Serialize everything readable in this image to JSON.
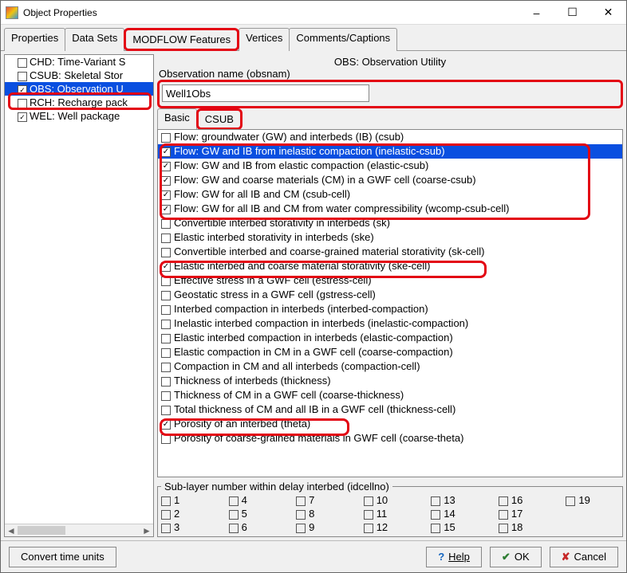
{
  "window": {
    "title": "Object Properties"
  },
  "tabs": [
    "Properties",
    "Data Sets",
    "MODFLOW Features",
    "Vertices",
    "Comments/Captions"
  ],
  "active_tab": "MODFLOW Features",
  "sidebar": {
    "items": [
      {
        "label": "CHD: Time-Variant S",
        "checked": false
      },
      {
        "label": "CSUB: Skeletal Stor",
        "checked": false
      },
      {
        "label": "OBS: Observation U",
        "checked": true,
        "highlight": true
      },
      {
        "label": "RCH: Recharge pack",
        "checked": false
      },
      {
        "label": "WEL: Well package",
        "checked": true
      }
    ]
  },
  "heading": "OBS: Observation Utility",
  "obsname": {
    "label": "Observation name (obsnam)",
    "value": "Well1Obs"
  },
  "subtabs": [
    "Basic",
    "CSUB"
  ],
  "listItems": [
    {
      "label": "Flow: groundwater (GW) and interbeds (IB) (csub)",
      "checked": false
    },
    {
      "label": "Flow: GW and IB from inelastic compaction (inelastic-csub)",
      "checked": true,
      "selected": true
    },
    {
      "label": "Flow: GW and IB from elastic compaction (elastic-csub)",
      "checked": true
    },
    {
      "label": "Flow: GW and coarse materials (CM) in a GWF cell (coarse-csub)",
      "checked": true
    },
    {
      "label": "Flow: GW for all IB and CM (csub-cell)",
      "checked": true
    },
    {
      "label": "Flow: GW for all IB and CM from water compressibility (wcomp-csub-cell)",
      "checked": true
    },
    {
      "label": "Convertible interbed storativity in interbeds (sk)",
      "checked": false
    },
    {
      "label": "Elastic interbed storativity in interbeds (ske)",
      "checked": false
    },
    {
      "label": "Convertible interbed and coarse-grained material storativity (sk-cell)",
      "checked": false
    },
    {
      "label": "Elastic interbed and coarse material storativity (ske-cell)",
      "checked": true
    },
    {
      "label": "Effective stress in a GWF cell (estress-cell)",
      "checked": false
    },
    {
      "label": "Geostatic stress in a GWF cell (gstress-cell)",
      "checked": false
    },
    {
      "label": "Interbed compaction in interbeds (interbed-compaction)",
      "checked": false
    },
    {
      "label": "Inelastic interbed compaction in interbeds (inelastic-compaction)",
      "checked": false
    },
    {
      "label": "Elastic interbed compaction in interbeds (elastic-compaction)",
      "checked": false
    },
    {
      "label": "Elastic compaction in CM  in a GWF cell (coarse-compaction)",
      "checked": false
    },
    {
      "label": "Compaction in CM and all interbeds (compaction-cell)",
      "checked": false
    },
    {
      "label": "Thickness of interbeds (thickness)",
      "checked": false
    },
    {
      "label": "Thickness of CM in a GWF cell (coarse-thickness)",
      "checked": false
    },
    {
      "label": "Total thickness of CM and all IB in a GWF cell (thickness-cell)",
      "checked": false
    },
    {
      "label": "Porosity of an interbed (theta)",
      "checked": true
    },
    {
      "label": "Porosity of coarse-grained materials in  GWF cell (coarse-theta)",
      "checked": false
    }
  ],
  "sublayer": {
    "legend": "Sub-layer number within delay interbed (idcellno)",
    "numbers": [
      "1",
      "2",
      "3",
      "4",
      "5",
      "6",
      "7",
      "8",
      "9",
      "10",
      "11",
      "12",
      "13",
      "14",
      "15",
      "16",
      "17",
      "18",
      "19"
    ]
  },
  "footer": {
    "convert": "Convert time units",
    "help": "Help",
    "ok": "OK",
    "cancel": "Cancel"
  }
}
